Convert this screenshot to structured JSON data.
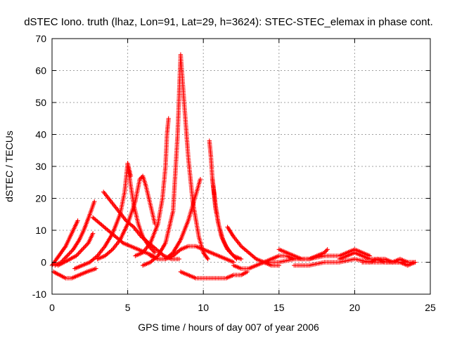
{
  "chart_data": {
    "type": "scatter",
    "title": "dSTEC Iono. truth (lhaz, Lon=91, Lat=29, h=3624): STEC-STEC_elemax in phase cont.",
    "xlabel": "GPS time / hours of day 007 of year 2006",
    "ylabel": "dSTEC  / TECUs",
    "xlim": [
      0,
      25
    ],
    "ylim": [
      -10,
      70
    ],
    "xticks": [
      0,
      5,
      10,
      15,
      20,
      25
    ],
    "yticks": [
      -10,
      0,
      10,
      20,
      30,
      40,
      50,
      60,
      70
    ],
    "grid": true,
    "marker": "plus",
    "color": "#ff0000",
    "series": [
      {
        "x": [
          0.0,
          0.3,
          0.6,
          0.9,
          1.2,
          1.5,
          1.7
        ],
        "y": [
          -1,
          1,
          3,
          5,
          8,
          11,
          13
        ]
      },
      {
        "x": [
          0.2,
          0.6,
          1.0,
          1.4,
          1.8,
          2.1,
          2.5,
          2.8
        ],
        "y": [
          -1,
          0,
          2,
          4,
          7,
          10,
          15,
          19
        ]
      },
      {
        "x": [
          0.4,
          0.8,
          1.2,
          1.6,
          2.0,
          2.4,
          2.7
        ],
        "y": [
          -1,
          0,
          1,
          2,
          4,
          6,
          9
        ]
      },
      {
        "x": [
          0.1,
          0.5,
          0.9,
          1.3,
          1.8,
          2.3,
          2.9
        ],
        "y": [
          -3,
          -4,
          -5,
          -5,
          -4,
          -3,
          -2
        ]
      },
      {
        "x": [
          1.5,
          2.0,
          2.5,
          3.0,
          3.5,
          4.0,
          4.5,
          4.8,
          5.0,
          5.2
        ],
        "y": [
          -2,
          -1,
          0,
          2,
          5,
          9,
          15,
          22,
          31,
          27
        ]
      },
      {
        "x": [
          5.0,
          5.2,
          5.4,
          5.7,
          6.0,
          6.4,
          6.8
        ],
        "y": [
          31,
          24,
          18,
          12,
          8,
          5,
          3
        ]
      },
      {
        "x": [
          3.4,
          3.9,
          4.4,
          4.9,
          5.4,
          5.9,
          6.4,
          6.9,
          7.4,
          7.9,
          8.4
        ],
        "y": [
          22,
          19,
          16,
          13,
          11,
          8,
          6,
          4,
          2,
          1,
          1
        ]
      },
      {
        "x": [
          3.0,
          3.5,
          4.0,
          4.5,
          5.0,
          5.5,
          5.8,
          6.0,
          6.2,
          6.5,
          6.8
        ],
        "y": [
          1,
          2,
          4,
          7,
          12,
          19,
          26,
          27,
          24,
          18,
          12
        ]
      },
      {
        "x": [
          2.7,
          3.2,
          3.7,
          4.2,
          4.7,
          5.2,
          5.7,
          6.2,
          6.7
        ],
        "y": [
          14,
          12,
          10,
          8,
          6,
          5,
          4,
          3,
          2
        ]
      },
      {
        "x": [
          5.5,
          6.0,
          6.5,
          7.0,
          7.3,
          7.5,
          7.6,
          7.7
        ],
        "y": [
          2,
          3,
          6,
          12,
          20,
          30,
          40,
          45
        ]
      },
      {
        "x": [
          6.0,
          6.5,
          7.0,
          7.5,
          8.0,
          8.3,
          8.5,
          8.7,
          9.0,
          9.3,
          9.7,
          10.0,
          10.3
        ],
        "y": [
          -1,
          0,
          2,
          6,
          16,
          40,
          65,
          52,
          33,
          19,
          8,
          3,
          1
        ]
      },
      {
        "x": [
          6.5,
          7.0,
          7.5,
          8.0,
          8.5,
          9.0,
          9.5,
          9.8
        ],
        "y": [
          2,
          1,
          1,
          3,
          7,
          13,
          21,
          26
        ]
      },
      {
        "x": [
          7.5,
          8.0,
          8.5,
          9.0,
          9.5,
          10.0,
          10.5,
          11.0,
          11.5,
          12.0
        ],
        "y": [
          1,
          2,
          4,
          5,
          5,
          4,
          3,
          2,
          1,
          0
        ]
      },
      {
        "x": [
          8.5,
          9.0,
          9.5,
          10.0,
          10.5,
          11.0,
          11.5,
          12.0,
          12.5,
          12.9
        ],
        "y": [
          -3,
          -4,
          -5,
          -5,
          -5,
          -5,
          -5,
          -4,
          -4,
          -3
        ]
      },
      {
        "x": [
          10.4,
          10.5,
          10.6,
          10.8,
          11.0,
          11.3,
          11.6,
          12.0,
          12.5
        ],
        "y": [
          38,
          33,
          26,
          18,
          12,
          7,
          4,
          2,
          1
        ]
      },
      {
        "x": [
          10.6,
          10.7,
          10.8,
          11.0,
          11.2,
          11.5,
          11.8,
          12.2
        ],
        "y": [
          26,
          22,
          17,
          12,
          8,
          5,
          3,
          1
        ]
      },
      {
        "x": [
          11.6,
          12.0,
          12.5,
          13.0,
          13.5,
          14.0,
          14.5,
          15.0
        ],
        "y": [
          11,
          8,
          5,
          3,
          1,
          0,
          -1,
          -1
        ]
      },
      {
        "x": [
          12.0,
          12.5,
          13.0,
          13.5,
          14.0,
          14.5,
          15.0,
          15.5,
          16.0
        ],
        "y": [
          -1,
          -2,
          -2,
          -1,
          0,
          1,
          2,
          2,
          1
        ]
      },
      {
        "x": [
          15.0,
          15.5,
          16.0,
          16.5,
          17.0,
          17.5,
          18.0,
          18.2
        ],
        "y": [
          4,
          3,
          2,
          1,
          1,
          2,
          3,
          4
        ]
      },
      {
        "x": [
          14.0,
          15.0,
          16.0,
          17.0,
          18.0,
          19.0,
          19.5,
          20.0,
          20.5,
          21.0
        ],
        "y": [
          0,
          0,
          1,
          1,
          2,
          2,
          3,
          4,
          3,
          2
        ]
      },
      {
        "x": [
          16.0,
          17.0,
          18.0,
          19.0,
          20.0,
          21.0,
          22.0,
          23.0,
          24.0
        ],
        "y": [
          -1,
          -1,
          0,
          0,
          1,
          0,
          0,
          0,
          0
        ]
      },
      {
        "x": [
          19.0,
          19.5,
          20.0,
          20.5,
          21.0,
          21.5,
          22.0,
          22.5,
          23.0,
          23.5
        ],
        "y": [
          1,
          2,
          3,
          2,
          1,
          1,
          0,
          0,
          1,
          0
        ]
      },
      {
        "x": [
          20.5,
          21.0,
          21.5,
          22.0,
          22.5,
          23.0,
          23.5,
          24.0
        ],
        "y": [
          0,
          0,
          1,
          1,
          0,
          0,
          -1,
          0
        ]
      }
    ]
  }
}
